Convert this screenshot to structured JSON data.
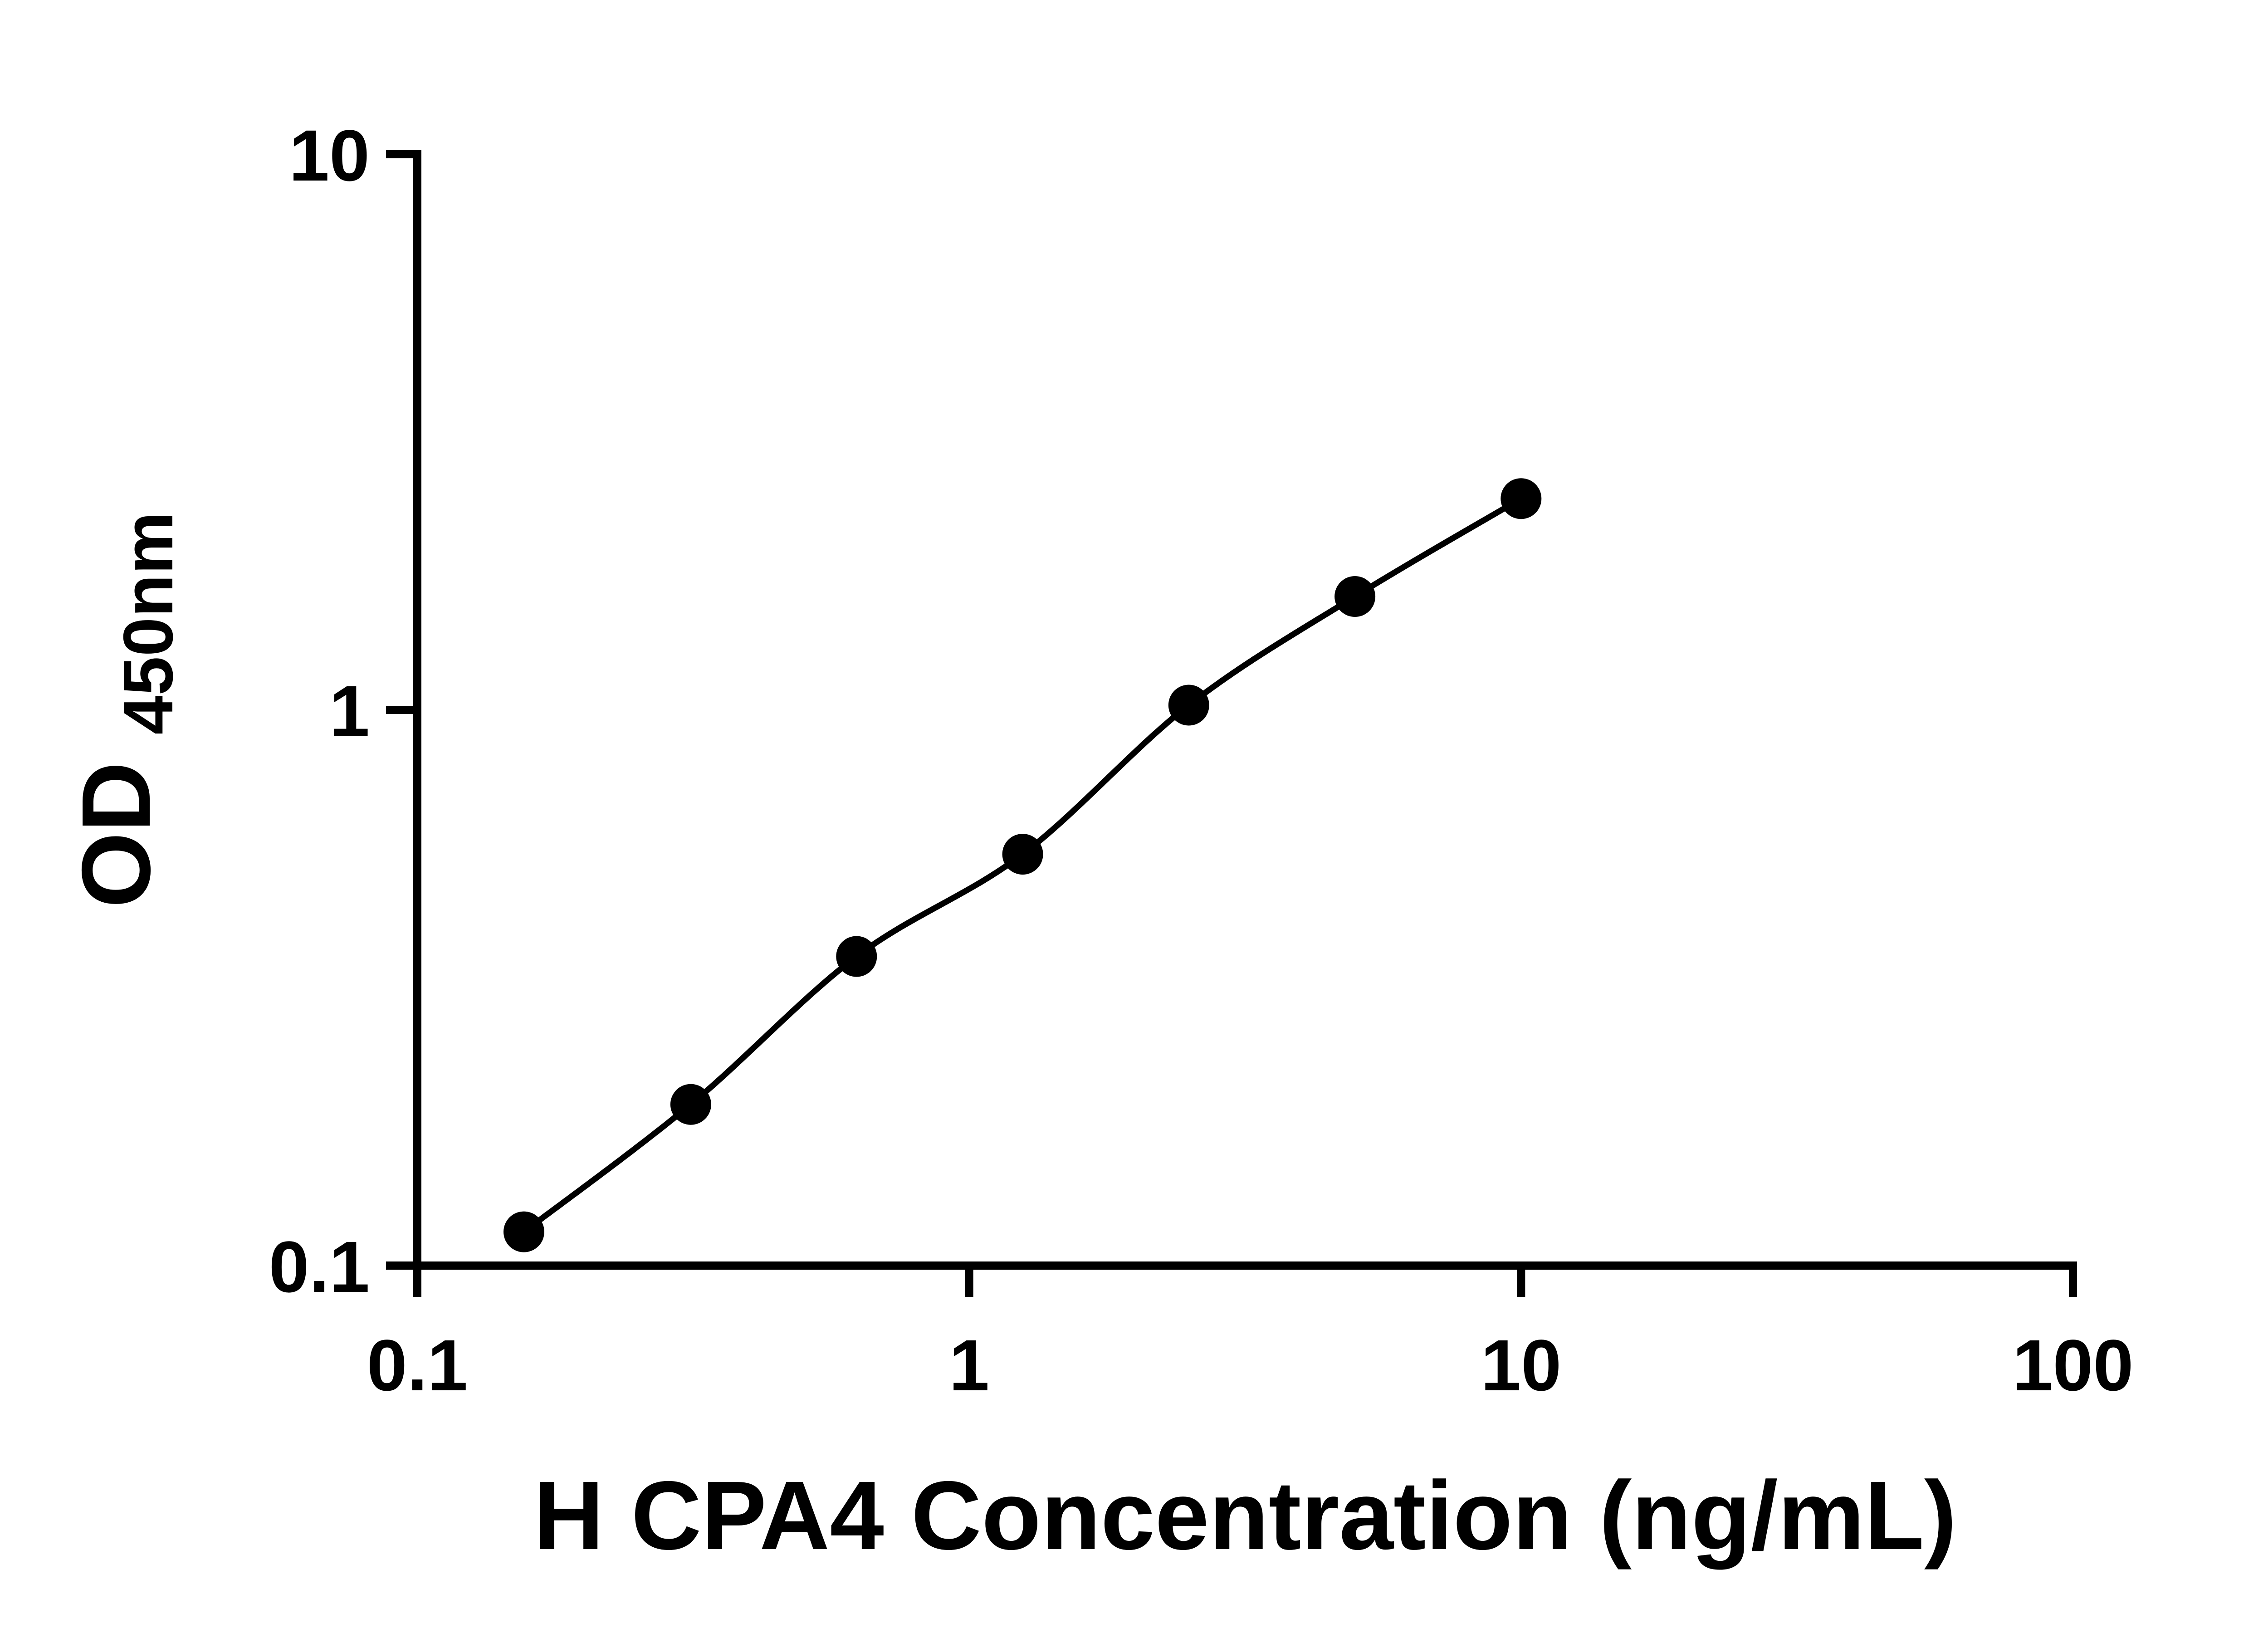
{
  "chart_data": {
    "type": "scatter",
    "x": [
      0.156,
      0.313,
      0.625,
      1.25,
      2.5,
      5,
      10
    ],
    "y": [
      0.115,
      0.195,
      0.36,
      0.55,
      1.02,
      1.6,
      2.4
    ],
    "title": "",
    "xlabel": "H CPA4 Concentration (ng/mL)",
    "ylabel_main": "OD",
    "ylabel_sub": "450nm",
    "xscale": "log",
    "yscale": "log",
    "xlim": [
      0.1,
      100
    ],
    "ylim": [
      0.1,
      10
    ],
    "x_ticks": [
      "0.1",
      "1",
      "10",
      "100"
    ],
    "y_ticks": [
      "0.1",
      "1",
      "10"
    ],
    "grid": false,
    "legend": false,
    "line": true,
    "marker": "circle",
    "marker_color": "#000000",
    "line_color": "#000000",
    "axis_color": "#000000",
    "background_color": "#ffffff"
  }
}
